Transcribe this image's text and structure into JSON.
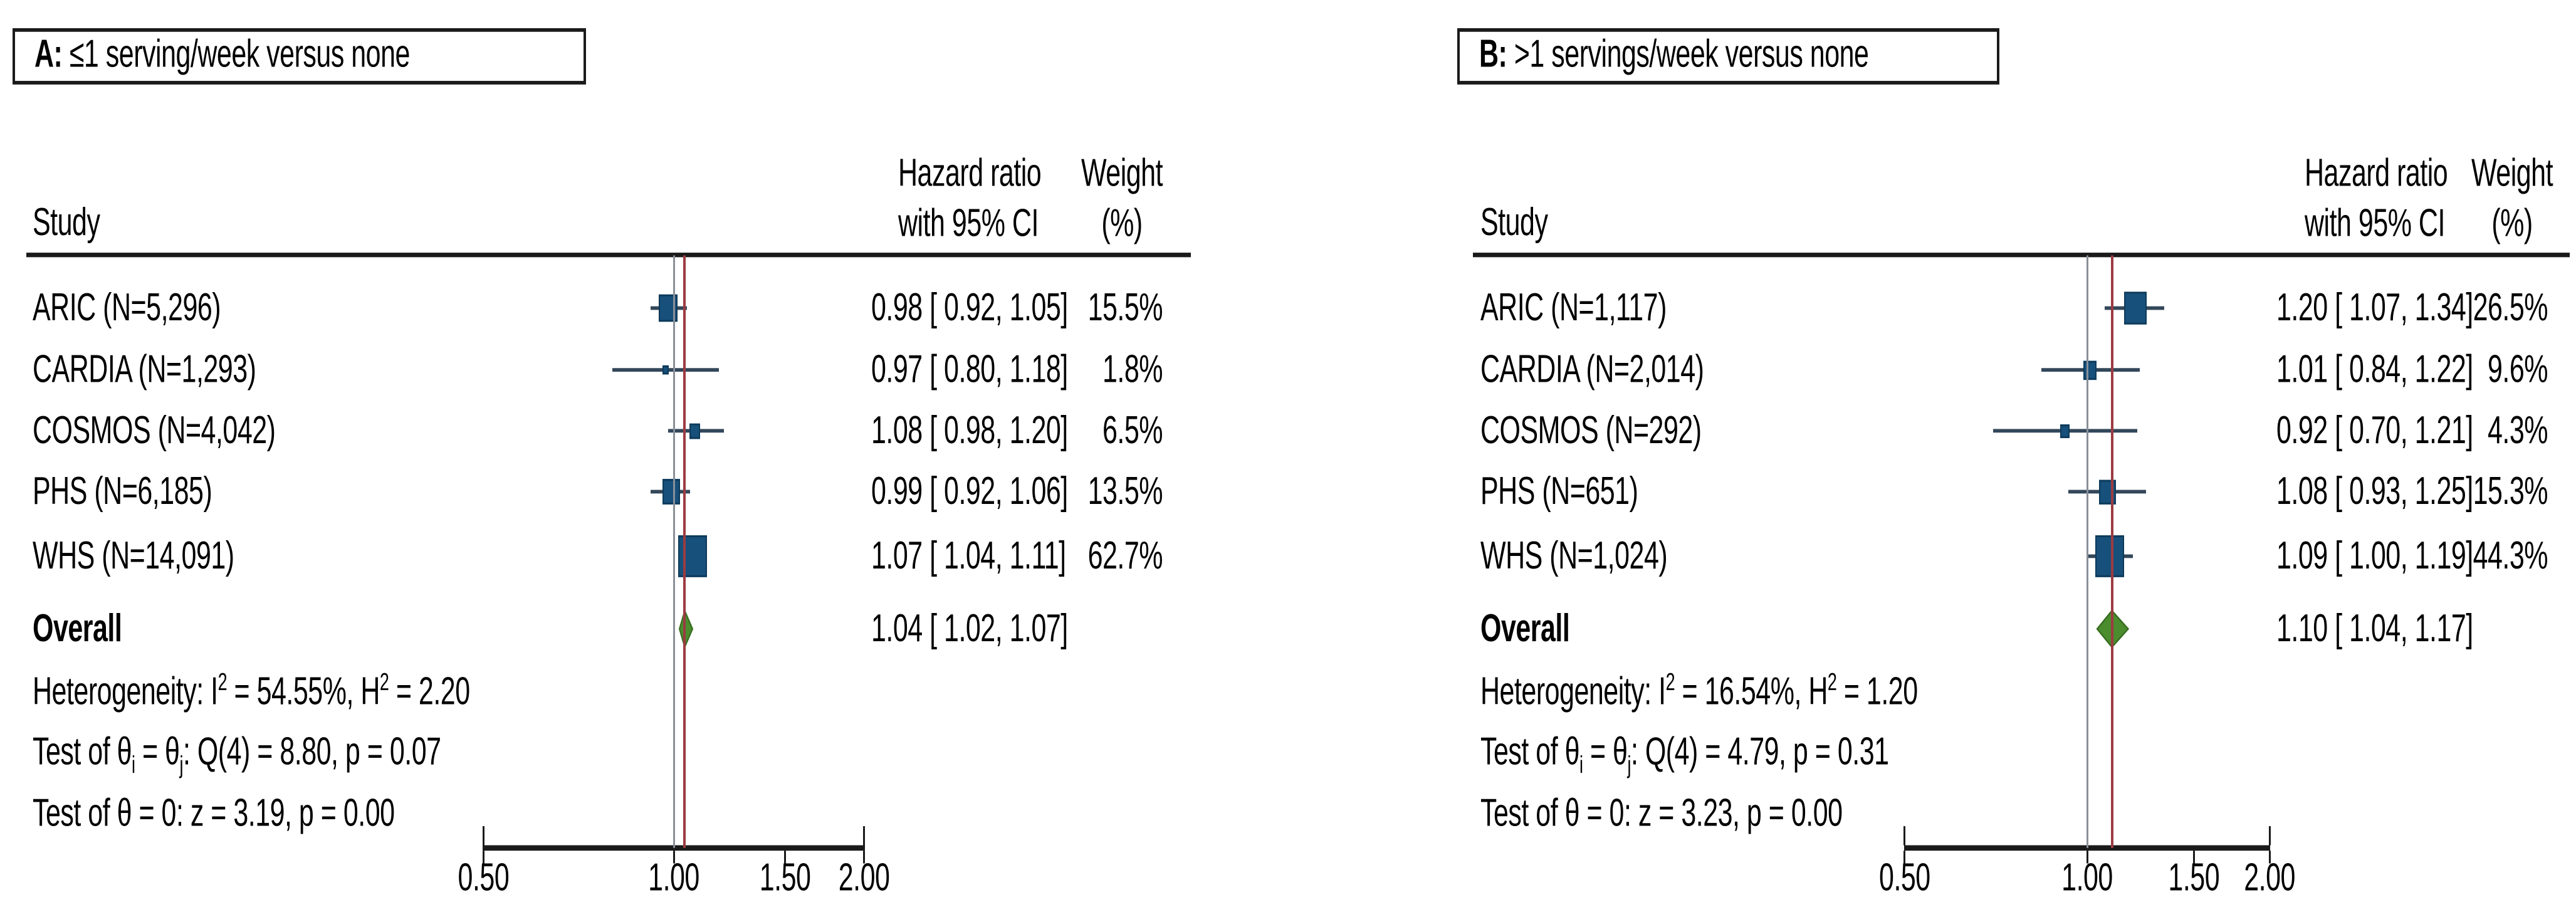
{
  "colors": {
    "square_fill": "#17507a",
    "square_border": "#0d3a5a",
    "diamond_fill": "#4a8c2e",
    "diamond_border": "#376d20",
    "ci_line": "#33475a",
    "reference_line": "#8a8f98",
    "overall_line": "#9c3b42",
    "rule": "#1a1a1a",
    "text": "#000000"
  },
  "panels": [
    {
      "title": {
        "prefix": "A:",
        "rest": " ≤1 serving/week versus none"
      },
      "header": {
        "study": "Study",
        "effect1": "Hazard ratio",
        "effect2": "with 95% CI",
        "weight1": "Weight",
        "weight2": "(%)"
      },
      "rows": [
        {
          "study": "ARIC (N=5,296)",
          "hr_text": "0.98 [ 0.92, 1.05]",
          "weight_text": "15.5%"
        },
        {
          "study": "CARDIA (N=1,293)",
          "hr_text": "0.97 [ 0.80, 1.18]",
          "weight_text": "1.8%"
        },
        {
          "study": "COSMOS (N=4,042)",
          "hr_text": "1.08 [ 0.98, 1.20]",
          "weight_text": "6.5%"
        },
        {
          "study": "PHS (N=6,185)",
          "hr_text": "0.99 [ 0.92, 1.06]",
          "weight_text": "13.5%"
        },
        {
          "study": "WHS (N=14,091)",
          "hr_text": "1.07 [ 1.04, 1.11]",
          "weight_text": "62.7%"
        }
      ],
      "overall": {
        "label": "Overall",
        "hr_text": "1.04 [ 1.02, 1.07]"
      },
      "stats": {
        "het": {
          "pre": "Heterogeneity: I",
          "sup1": "2",
          "mid": " = 54.55%, H",
          "sup2": "2",
          "end": " = 2.20"
        },
        "q": {
          "pre": "Test of θ",
          "sub1": "i",
          "mid": " = θ",
          "sub2": "j",
          "end": ": Q(4) = 8.80, p = 0.07"
        },
        "z": "Test of θ = 0: z = 3.19, p = 0.00"
      },
      "axis_ticks": [
        "0.50",
        "1.00",
        "1.50",
        "2.00"
      ]
    },
    {
      "title": {
        "prefix": "B:",
        "rest": " >1 servings/week versus none"
      },
      "header": {
        "study": "Study",
        "effect1": "Hazard ratio",
        "effect2": "with 95% CI",
        "weight1": "Weight",
        "weight2": "(%)"
      },
      "rows": [
        {
          "study": "ARIC (N=1,117)",
          "hr_text": "1.20 [ 1.07, 1.34]",
          "weight_text": "26.5%"
        },
        {
          "study": "CARDIA (N=2,014)",
          "hr_text": "1.01 [ 0.84, 1.22]",
          "weight_text": "9.6%"
        },
        {
          "study": "COSMOS (N=292)",
          "hr_text": "0.92 [ 0.70, 1.21]",
          "weight_text": "4.3%"
        },
        {
          "study": "PHS (N=651)",
          "hr_text": "1.08 [ 0.93, 1.25]",
          "weight_text": "15.3%"
        },
        {
          "study": "WHS (N=1,024)",
          "hr_text": "1.09 [ 1.00, 1.19]",
          "weight_text": "44.3%"
        }
      ],
      "overall": {
        "label": "Overall",
        "hr_text": "1.10 [ 1.04, 1.17]"
      },
      "stats": {
        "het": {
          "pre": "Heterogeneity: I",
          "sup1": "2",
          "mid": " = 16.54%, H",
          "sup2": "2",
          "end": " = 1.20"
        },
        "q": {
          "pre": "Test of θ",
          "sub1": "i",
          "mid": " = θ",
          "sub2": "j",
          "end": ": Q(4) = 4.79, p = 0.31"
        },
        "z": "Test of θ = 0: z = 3.23, p = 0.00"
      },
      "axis_ticks": [
        "0.50",
        "1.00",
        "1.50",
        "2.00"
      ]
    }
  ],
  "chart_data": [
    {
      "type": "scatter",
      "subtype": "forest",
      "title": "A: ≤1 serving/week versus none",
      "effect_measure": "Hazard ratio with 95% CI",
      "x_scale": "log",
      "x_ticks": [
        0.5,
        1.0,
        1.5,
        2.0
      ],
      "reference_line": 1.0,
      "studies": [
        {
          "label": "ARIC (N=5,296)",
          "hr": 0.98,
          "ci": [
            0.92,
            1.05
          ],
          "weight_pct": 15.5
        },
        {
          "label": "CARDIA (N=1,293)",
          "hr": 0.97,
          "ci": [
            0.8,
            1.18
          ],
          "weight_pct": 1.8
        },
        {
          "label": "COSMOS (N=4,042)",
          "hr": 1.08,
          "ci": [
            0.98,
            1.2
          ],
          "weight_pct": 6.5
        },
        {
          "label": "PHS (N=6,185)",
          "hr": 0.99,
          "ci": [
            0.92,
            1.06
          ],
          "weight_pct": 13.5
        },
        {
          "label": "WHS (N=14,091)",
          "hr": 1.07,
          "ci": [
            1.04,
            1.11
          ],
          "weight_pct": 62.7
        }
      ],
      "overall": {
        "hr": 1.04,
        "ci": [
          1.02,
          1.07
        ]
      },
      "heterogeneity": {
        "I2_pct": 54.55,
        "H2": 2.2
      },
      "Q_test": {
        "Q": 8.8,
        "df": 4,
        "p": 0.07
      },
      "z_test": {
        "z": 3.19,
        "p": 0.0
      }
    },
    {
      "type": "scatter",
      "subtype": "forest",
      "title": "B: >1 servings/week versus none",
      "effect_measure": "Hazard ratio with 95% CI",
      "x_scale": "log",
      "x_ticks": [
        0.5,
        1.0,
        1.5,
        2.0
      ],
      "reference_line": 1.0,
      "studies": [
        {
          "label": "ARIC (N=1,117)",
          "hr": 1.2,
          "ci": [
            1.07,
            1.34
          ],
          "weight_pct": 26.5
        },
        {
          "label": "CARDIA (N=2,014)",
          "hr": 1.01,
          "ci": [
            0.84,
            1.22
          ],
          "weight_pct": 9.6
        },
        {
          "label": "COSMOS (N=292)",
          "hr": 0.92,
          "ci": [
            0.7,
            1.21
          ],
          "weight_pct": 4.3
        },
        {
          "label": "PHS (N=651)",
          "hr": 1.08,
          "ci": [
            0.93,
            1.25
          ],
          "weight_pct": 15.3
        },
        {
          "label": "WHS (N=1,024)",
          "hr": 1.09,
          "ci": [
            1.0,
            1.19
          ],
          "weight_pct": 44.3
        }
      ],
      "overall": {
        "hr": 1.1,
        "ci": [
          1.04,
          1.17
        ]
      },
      "heterogeneity": {
        "I2_pct": 16.54,
        "H2": 1.2
      },
      "Q_test": {
        "Q": 4.79,
        "df": 4,
        "p": 0.31
      },
      "z_test": {
        "z": 3.23,
        "p": 0.0
      }
    }
  ]
}
